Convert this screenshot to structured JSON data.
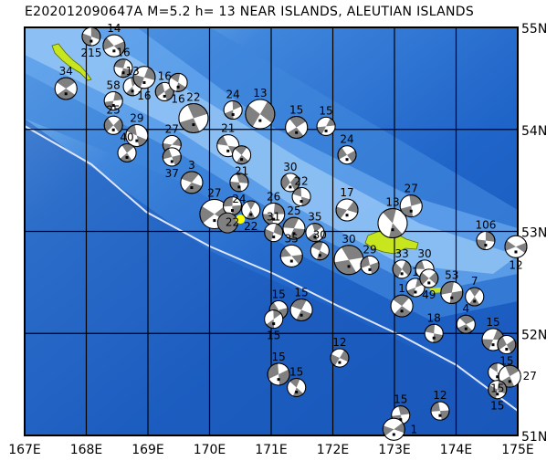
{
  "title": "E202012090647A  M=5.2  h=  13  NEAR ISLANDS, ALEUTIAN ISLANDS",
  "map": {
    "lon_range": [
      167,
      175
    ],
    "lat_range": [
      51,
      55
    ],
    "lon_labels": [
      "167E",
      "168E",
      "169E",
      "170E",
      "171E",
      "172E",
      "173E",
      "174E",
      "175E"
    ],
    "lat_labels": [
      "55N",
      "54N",
      "53N",
      "52N",
      "51N"
    ],
    "colors": {
      "deep": "#1f5fc4",
      "mid": "#3f86dc",
      "shallow": "#8cc4f4",
      "land": "#c8e61e",
      "trench": "#dfe6ff",
      "compression": "#808080",
      "dilatation": "#ffffff",
      "event": "#ffff00"
    },
    "target_event": {
      "lon": 170.5,
      "lat": 53.12
    }
  },
  "events": [
    {
      "lon": 167.67,
      "lat": 54.4,
      "depth": "34"
    },
    {
      "lon": 168.44,
      "lat": 54.28,
      "depth": "58"
    },
    {
      "lon": 168.44,
      "lat": 54.04,
      "depth": "25"
    },
    {
      "lon": 168.82,
      "lat": 53.94,
      "depth": "29"
    },
    {
      "lon": 168.66,
      "lat": 53.77,
      "depth": "40"
    },
    {
      "lon": 168.08,
      "lat": 54.91,
      "depth": "215"
    },
    {
      "lon": 168.45,
      "lat": 54.82,
      "depth": "14"
    },
    {
      "lon": 168.6,
      "lat": 54.6,
      "depth": "16"
    },
    {
      "lon": 168.75,
      "lat": 54.42,
      "depth": "13"
    },
    {
      "lon": 168.94,
      "lat": 54.51,
      "depth": "16"
    },
    {
      "lon": 169.27,
      "lat": 54.37,
      "depth": "16"
    },
    {
      "lon": 169.49,
      "lat": 54.46,
      "depth": "16"
    },
    {
      "lon": 169.74,
      "lat": 54.11,
      "depth": "22"
    },
    {
      "lon": 169.39,
      "lat": 53.85,
      "depth": "27"
    },
    {
      "lon": 169.39,
      "lat": 53.73,
      "depth": "37"
    },
    {
      "lon": 169.71,
      "lat": 53.48,
      "depth": "3"
    },
    {
      "lon": 170.38,
      "lat": 54.19,
      "depth": "24"
    },
    {
      "lon": 170.82,
      "lat": 54.15,
      "depth": "13"
    },
    {
      "lon": 170.3,
      "lat": 53.84,
      "depth": "21"
    },
    {
      "lon": 170.52,
      "lat": 53.75,
      "depth": "21"
    },
    {
      "lon": 170.48,
      "lat": 53.48,
      "depth": "24"
    },
    {
      "lon": 170.08,
      "lat": 53.17,
      "depth": "27"
    },
    {
      "lon": 170.37,
      "lat": 53.25,
      "depth": "22"
    },
    {
      "lon": 170.67,
      "lat": 53.21,
      "depth": "22"
    },
    {
      "lon": 171.04,
      "lat": 53.17,
      "depth": "26"
    },
    {
      "lon": 171.31,
      "lat": 53.48,
      "depth": "30"
    },
    {
      "lon": 171.49,
      "lat": 53.34,
      "depth": "22"
    },
    {
      "lon": 171.41,
      "lat": 54.02,
      "depth": "15"
    },
    {
      "lon": 171.89,
      "lat": 54.03,
      "depth": "15"
    },
    {
      "lon": 172.23,
      "lat": 53.75,
      "depth": "24"
    },
    {
      "lon": 171.37,
      "lat": 53.03,
      "depth": "25"
    },
    {
      "lon": 171.71,
      "lat": 52.99,
      "depth": "35"
    },
    {
      "lon": 171.04,
      "lat": 52.99,
      "depth": "31"
    },
    {
      "lon": 171.33,
      "lat": 52.76,
      "depth": "35"
    },
    {
      "lon": 171.79,
      "lat": 52.81,
      "depth": "30"
    },
    {
      "lon": 172.26,
      "lat": 52.72,
      "depth": "30"
    },
    {
      "lon": 172.23,
      "lat": 53.21,
      "depth": "17"
    },
    {
      "lon": 172.6,
      "lat": 52.67,
      "depth": "29"
    },
    {
      "lon": 172.97,
      "lat": 53.08,
      "depth": "13"
    },
    {
      "lon": 173.27,
      "lat": 53.25,
      "depth": "27"
    },
    {
      "lon": 173.12,
      "lat": 52.63,
      "depth": "33"
    },
    {
      "lon": 173.49,
      "lat": 52.63,
      "depth": "30"
    },
    {
      "lon": 173.12,
      "lat": 52.27,
      "depth": "1"
    },
    {
      "lon": 173.34,
      "lat": 52.45,
      "depth": "1"
    },
    {
      "lon": 173.56,
      "lat": 52.54,
      "depth": "49"
    },
    {
      "lon": 173.93,
      "lat": 52.4,
      "depth": "53"
    },
    {
      "lon": 174.3,
      "lat": 52.36,
      "depth": "7"
    },
    {
      "lon": 174.48,
      "lat": 52.91,
      "depth": "106"
    },
    {
      "lon": 174.97,
      "lat": 52.85,
      "depth": "12"
    },
    {
      "lon": 173.64,
      "lat": 52.0,
      "depth": "18"
    },
    {
      "lon": 174.16,
      "lat": 52.09,
      "depth": "4"
    },
    {
      "lon": 174.6,
      "lat": 51.94,
      "depth": "15"
    },
    {
      "lon": 174.82,
      "lat": 51.89,
      "depth": "15"
    },
    {
      "lon": 174.67,
      "lat": 51.62,
      "depth": "15"
    },
    {
      "lon": 174.87,
      "lat": 51.58,
      "depth": "27"
    },
    {
      "lon": 174.67,
      "lat": 51.45,
      "depth": "15"
    },
    {
      "lon": 171.12,
      "lat": 52.23,
      "depth": "15"
    },
    {
      "lon": 171.49,
      "lat": 52.23,
      "depth": "15"
    },
    {
      "lon": 171.04,
      "lat": 52.14,
      "depth": "15"
    },
    {
      "lon": 172.11,
      "lat": 51.76,
      "depth": "12"
    },
    {
      "lon": 171.12,
      "lat": 51.6,
      "depth": "15"
    },
    {
      "lon": 171.41,
      "lat": 51.47,
      "depth": "15"
    },
    {
      "lon": 173.1,
      "lat": 51.2,
      "depth": "15"
    },
    {
      "lon": 172.99,
      "lat": 51.06,
      "depth": "1"
    },
    {
      "lon": 173.74,
      "lat": 51.24,
      "depth": "12"
    }
  ]
}
